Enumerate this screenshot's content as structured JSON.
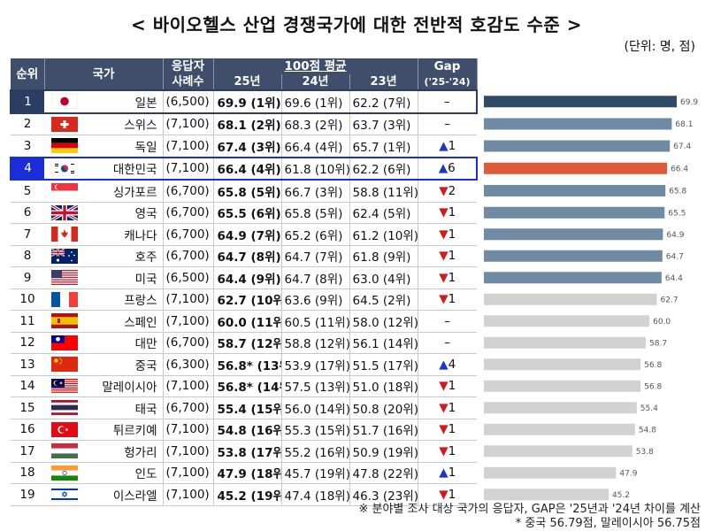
{
  "title": "< 바이오헬스 산업 경쟁국가에 대한 전반적 호감도 수준 >",
  "unit": "(단위: 명, 점)",
  "headers": {
    "rank": "순위",
    "country": "국가",
    "respondents_1": "응답자",
    "respondents_2": "사례수",
    "score_group": "100점 평균",
    "y25": "25년",
    "y24": "24년",
    "y23": "23년",
    "gap_1": "Gap",
    "gap_2": "('25-'24)"
  },
  "rows": [
    {
      "rank": "1",
      "country": "일본",
      "n": "(6,500)",
      "s25": "69.9 (1위)",
      "s24": "69.6 (1위)",
      "s23": "62.2 (7위)",
      "gap_sym": "–",
      "gap_val": "",
      "gap_dir": "none",
      "flag": "jp"
    },
    {
      "rank": "2",
      "country": "스위스",
      "n": "(7,100)",
      "s25": "68.1 (2위)",
      "s24": "68.3 (2위)",
      "s23": "63.7 (3위)",
      "gap_sym": "–",
      "gap_val": "",
      "gap_dir": "none",
      "flag": "ch"
    },
    {
      "rank": "3",
      "country": "독일",
      "n": "(7,100)",
      "s25": "67.4 (3위)",
      "s24": "66.4 (4위)",
      "s23": "65.7 (1위)",
      "gap_sym": "▲",
      "gap_val": "1",
      "gap_dir": "up",
      "flag": "de"
    },
    {
      "rank": "4",
      "country": "대한민국",
      "n": "(7,100)",
      "s25": "66.4 (4위)",
      "s24": "61.8 (10위)",
      "s23": "62.2 (6위)",
      "gap_sym": "▲",
      "gap_val": "6",
      "gap_dir": "up",
      "flag": "kr"
    },
    {
      "rank": "5",
      "country": "싱가포르",
      "n": "(6,700)",
      "s25": "65.8 (5위)",
      "s24": "66.7 (3위)",
      "s23": "58.8 (11위)",
      "gap_sym": "▼",
      "gap_val": "2",
      "gap_dir": "down",
      "flag": "sg"
    },
    {
      "rank": "6",
      "country": "영국",
      "n": "(6,700)",
      "s25": "65.5 (6위)",
      "s24": "65.8 (5위)",
      "s23": "62.4 (5위)",
      "gap_sym": "▼",
      "gap_val": "1",
      "gap_dir": "down",
      "flag": "gb"
    },
    {
      "rank": "7",
      "country": "캐나다",
      "n": "(6,700)",
      "s25": "64.9 (7위)",
      "s24": "65.2 (6위)",
      "s23": "61.2 (10위)",
      "gap_sym": "▼",
      "gap_val": "1",
      "gap_dir": "down",
      "flag": "ca"
    },
    {
      "rank": "8",
      "country": "호주",
      "n": "(6,700)",
      "s25": "64.7 (8위)",
      "s24": "64.7 (7위)",
      "s23": "61.8 (9위)",
      "gap_sym": "▼",
      "gap_val": "1",
      "gap_dir": "down",
      "flag": "au"
    },
    {
      "rank": "9",
      "country": "미국",
      "n": "(6,500)",
      "s25": "64.4 (9위)",
      "s24": "64.7 (8위)",
      "s23": "63.0 (4위)",
      "gap_sym": "▼",
      "gap_val": "1",
      "gap_dir": "down",
      "flag": "us"
    },
    {
      "rank": "10",
      "country": "프랑스",
      "n": "(7,100)",
      "s25": "62.7 (10위)",
      "s24": "63.6 (9위)",
      "s23": "64.5 (2위)",
      "gap_sym": "▼",
      "gap_val": "1",
      "gap_dir": "down",
      "flag": "fr"
    },
    {
      "rank": "11",
      "country": "스페인",
      "n": "(7,100)",
      "s25": "60.0 (11위)",
      "s24": "60.5 (11위)",
      "s23": "58.0 (12위)",
      "gap_sym": "–",
      "gap_val": "",
      "gap_dir": "none",
      "flag": "es"
    },
    {
      "rank": "12",
      "country": "대만",
      "n": "(6,700)",
      "s25": "58.7 (12위)",
      "s24": "58.8 (12위)",
      "s23": "56.1 (14위)",
      "gap_sym": "–",
      "gap_val": "",
      "gap_dir": "none",
      "flag": "tw"
    },
    {
      "rank": "13",
      "country": "중국",
      "n": "(6,300)",
      "s25": "56.8* (13위)",
      "s24": "53.9 (17위)",
      "s23": "51.5 (17위)",
      "gap_sym": "▲",
      "gap_val": "4",
      "gap_dir": "up",
      "flag": "cn"
    },
    {
      "rank": "14",
      "country": "말레이시아",
      "n": "(7,100)",
      "s25": "56.8* (14위)",
      "s24": "57.5 (13위)",
      "s23": "51.0 (18위)",
      "gap_sym": "▼",
      "gap_val": "1",
      "gap_dir": "down",
      "flag": "my"
    },
    {
      "rank": "15",
      "country": "태국",
      "n": "(6,700)",
      "s25": "55.4 (15위)",
      "s24": "56.0 (14위)",
      "s23": "50.8 (20위)",
      "gap_sym": "▼",
      "gap_val": "1",
      "gap_dir": "down",
      "flag": "th"
    },
    {
      "rank": "16",
      "country": "튀르키예",
      "n": "(7,100)",
      "s25": "54.8 (16위)",
      "s24": "55.3 (15위)",
      "s23": "51.7 (16위)",
      "gap_sym": "▼",
      "gap_val": "1",
      "gap_dir": "down",
      "flag": "tr"
    },
    {
      "rank": "17",
      "country": "헝가리",
      "n": "(7,100)",
      "s25": "53.8 (17위)",
      "s24": "55.2 (16위)",
      "s23": "50.9 (19위)",
      "gap_sym": "▼",
      "gap_val": "1",
      "gap_dir": "down",
      "flag": "hu"
    },
    {
      "rank": "18",
      "country": "인도",
      "n": "(7,100)",
      "s25": "47.9 (18위)",
      "s24": "45.7 (19위)",
      "s23": "47.8 (22위)",
      "gap_sym": "▲",
      "gap_val": "1",
      "gap_dir": "up",
      "flag": "in"
    },
    {
      "rank": "19",
      "country": "이스라엘",
      "n": "(7,100)",
      "s25": "45.2 (19위)",
      "s24": "47.4 (18위)",
      "s23": "46.3 (23위)",
      "gap_sym": "▼",
      "gap_val": "1",
      "gap_dir": "down",
      "flag": "il"
    }
  ],
  "chart_data": {
    "type": "bar",
    "orientation": "horizontal",
    "categories": [
      "일본",
      "스위스",
      "독일",
      "대한민국",
      "싱가포르",
      "영국",
      "캐나다",
      "호주",
      "미국",
      "프랑스",
      "스페인",
      "대만",
      "중국",
      "말레이시아",
      "태국",
      "튀르키예",
      "헝가리",
      "인도",
      "이스라엘"
    ],
    "values": [
      69.9,
      68.1,
      67.4,
      66.4,
      65.8,
      65.5,
      64.9,
      64.7,
      64.4,
      62.7,
      60.0,
      58.7,
      56.8,
      56.8,
      55.4,
      54.8,
      53.8,
      47.9,
      45.2
    ],
    "value_labels": [
      "69.9",
      "68.1",
      "67.4",
      "66.4",
      "65.8",
      "65.5",
      "64.9",
      "64.7",
      "64.4",
      "62.7",
      "60.0",
      "58.7",
      "56.8",
      "56.8",
      "55.4",
      "54.8",
      "53.8",
      "47.9",
      "45.2"
    ],
    "colors": {
      "top9": "#6f8ba3",
      "korea": "#e05a3a",
      "other": "#d2d2d2",
      "first": "#2f4a66"
    }
  },
  "notes": {
    "line1": "※ 분야별 조사 대상 국가의 응답자, GAP은 '25년과 '24년 차이를 계산",
    "line2": "* 중국 56.79점, 말레이시아 56.75점"
  }
}
